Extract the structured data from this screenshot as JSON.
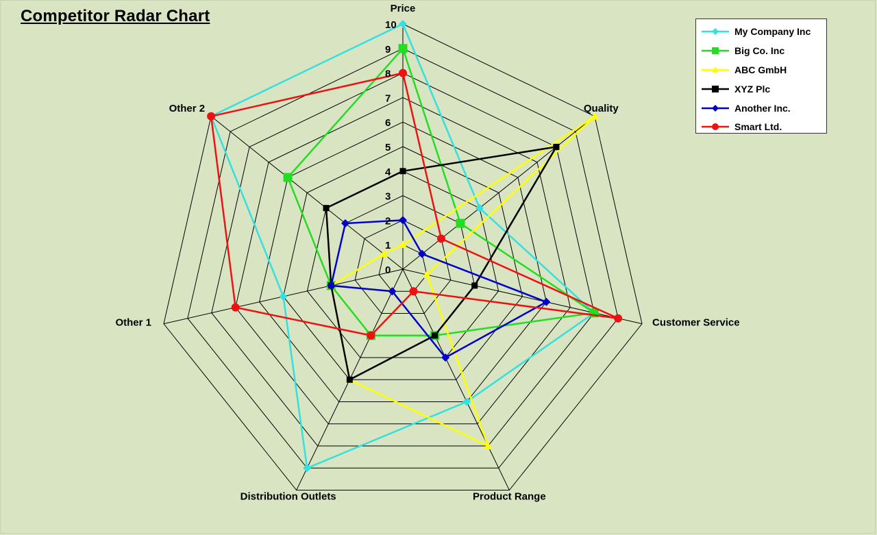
{
  "chart_data": {
    "type": "radar",
    "title": "Competitor Radar Chart",
    "axes": [
      "Price",
      "Quality",
      "Customer Service",
      "Product Range",
      "Distribution Outlets",
      "Other 1",
      "Other 2"
    ],
    "scale": {
      "min": 0,
      "max": 10,
      "step": 1
    },
    "tick_labels": [
      "0",
      "1",
      "2",
      "3",
      "4",
      "5",
      "6",
      "7",
      "8",
      "9",
      "10"
    ],
    "grid": true,
    "legend_position": "top-right",
    "series": [
      {
        "name": "My Company  Inc",
        "color": "#33e0e0",
        "marker": "diamond",
        "values": [
          10,
          4,
          8,
          6,
          9,
          5,
          10
        ]
      },
      {
        "name": "Big Co. Inc",
        "color": "#22dd22",
        "marker": "square",
        "values": [
          9,
          3,
          8,
          3,
          3,
          3,
          6
        ]
      },
      {
        "name": "ABC GmbH",
        "color": "#ffff00",
        "marker": "triangle",
        "values": [
          1,
          10,
          1,
          8,
          5,
          3,
          1
        ]
      },
      {
        "name": "XYZ Plc",
        "color": "#000000",
        "marker": "square",
        "values": [
          4,
          8,
          3,
          3,
          5,
          3,
          4
        ]
      },
      {
        "name": "Another Inc.",
        "color": "#0000cc",
        "marker": "diamond",
        "values": [
          2,
          1,
          6,
          4,
          1,
          3,
          3
        ]
      },
      {
        "name": "Smart Ltd.",
        "color": "#ee1111",
        "marker": "circle",
        "values": [
          8,
          2,
          9,
          1,
          3,
          7,
          10
        ]
      }
    ]
  }
}
